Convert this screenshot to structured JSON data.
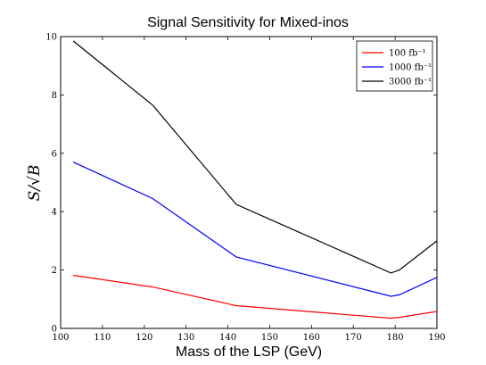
{
  "chart_data": {
    "type": "line",
    "title": "Signal Sensitivity for Mixed-inos",
    "xlabel": "Mass of the LSP (GeV)",
    "ylabel": "S/√B",
    "xlim": [
      100,
      190
    ],
    "ylim": [
      0,
      10
    ],
    "xticks": [
      "100",
      "110",
      "120",
      "130",
      "140",
      "150",
      "160",
      "170",
      "180",
      "190"
    ],
    "yticks": [
      "0",
      "2",
      "4",
      "6",
      "8",
      "10"
    ],
    "grid": false,
    "legend_position": "top-right",
    "series": [
      {
        "name": "100 fb⁻¹",
        "color": "#ff0000",
        "x": [
          103,
          122,
          142,
          179,
          181,
          190
        ],
        "y": [
          1.82,
          1.42,
          0.78,
          0.35,
          0.38,
          0.58
        ]
      },
      {
        "name": "1000 fb⁻¹",
        "color": "#0000ff",
        "x": [
          103,
          122,
          142,
          179,
          181,
          190
        ],
        "y": [
          5.7,
          4.45,
          2.45,
          1.1,
          1.15,
          1.75
        ]
      },
      {
        "name": "3000 fb⁻¹",
        "color": "#000000",
        "x": [
          103,
          122,
          142,
          179,
          181,
          190
        ],
        "y": [
          9.85,
          7.65,
          4.25,
          1.9,
          2.0,
          3.0
        ]
      }
    ]
  }
}
